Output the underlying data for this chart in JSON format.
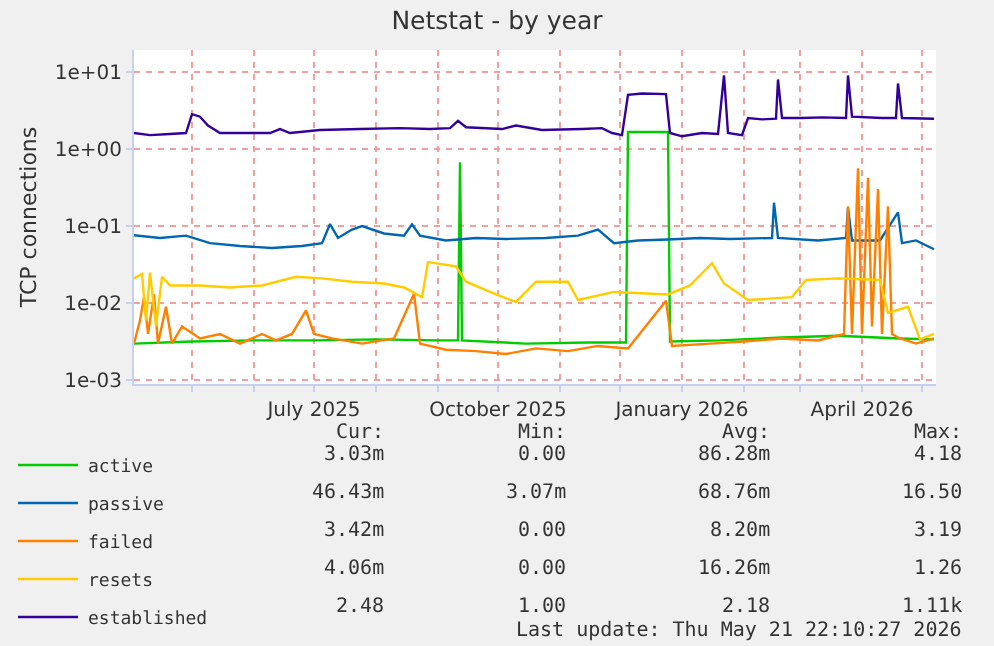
{
  "chart_data": {
    "type": "line",
    "title": "Netstat - by year",
    "ylabel": "TCP connections",
    "log": "y",
    "grid": true,
    "legend": "bottom",
    "xlim": [
      "2025-04-02",
      "2026-05-08"
    ],
    "xticks": [
      {
        "value": "2025-05-01",
        "label": null
      },
      {
        "value": "2025-06-01",
        "label": null
      },
      {
        "value": "2025-07-01",
        "label": "July 2025"
      },
      {
        "value": "2025-08-01",
        "label": null
      },
      {
        "value": "2025-09-01",
        "label": null
      },
      {
        "value": "2025-10-01",
        "label": "October 2025"
      },
      {
        "value": "2025-11-01",
        "label": null
      },
      {
        "value": "2025-12-01",
        "label": null
      },
      {
        "value": "2026-01-01",
        "label": "January 2026"
      },
      {
        "value": "2026-02-01",
        "label": null
      },
      {
        "value": "2026-03-01",
        "label": null
      },
      {
        "value": "2026-04-01",
        "label": "April 2026"
      },
      {
        "value": "2026-05-01",
        "label": null
      }
    ],
    "ylim": [
      0.0009,
      19
    ],
    "yticks": [
      {
        "value": 0.001,
        "label": "1e-03"
      },
      {
        "value": 0.01,
        "label": "1e-02"
      },
      {
        "value": 0.1,
        "label": "1e-01"
      },
      {
        "value": 1,
        "label": "1e+00"
      },
      {
        "value": 10,
        "label": "1e+01"
      }
    ],
    "series": [
      {
        "name": "active",
        "color": "#00cc00",
        "x": [
          "2025-04-02",
          "2025-05-01",
          "2025-06-01",
          "2025-07-01",
          "2025-08-01",
          "2025-09-01",
          "2025-09-11",
          "2025-09-12",
          "2025-09-13",
          "2025-10-15",
          "2025-11-15",
          "2025-12-04",
          "2025-12-05",
          "2025-12-25",
          "2025-12-26",
          "2026-01-20",
          "2026-02-20",
          "2026-03-20",
          "2026-04-20",
          "2026-05-07"
        ],
        "values": [
          0.003,
          0.0032,
          0.0033,
          0.0033,
          0.0034,
          0.0033,
          0.0033,
          0.67,
          0.0033,
          0.003,
          0.0031,
          0.0031,
          1.65,
          1.65,
          0.0032,
          0.0033,
          0.0036,
          0.0038,
          0.0035,
          0.0034
        ]
      },
      {
        "name": "passive",
        "color": "#0066b3",
        "x": [
          "2025-04-02",
          "2025-04-15",
          "2025-04-28",
          "2025-05-10",
          "2025-05-25",
          "2025-06-10",
          "2025-06-25",
          "2025-07-05",
          "2025-07-09",
          "2025-07-13",
          "2025-07-20",
          "2025-07-25",
          "2025-08-05",
          "2025-08-15",
          "2025-08-19",
          "2025-08-23",
          "2025-09-05",
          "2025-09-20",
          "2025-10-05",
          "2025-10-25",
          "2025-11-10",
          "2025-11-20",
          "2025-11-28",
          "2025-12-10",
          "2025-12-25",
          "2026-01-10",
          "2026-01-25",
          "2026-02-15",
          "2026-02-16",
          "2026-02-18",
          "2026-03-10",
          "2026-03-24",
          "2026-03-25",
          "2026-03-27",
          "2026-04-10",
          "2026-04-19",
          "2026-04-21",
          "2026-04-28",
          "2026-05-07"
        ],
        "values": [
          0.076,
          0.07,
          0.075,
          0.06,
          0.055,
          0.052,
          0.055,
          0.06,
          0.106,
          0.07,
          0.09,
          0.1,
          0.08,
          0.075,
          0.105,
          0.075,
          0.065,
          0.07,
          0.068,
          0.07,
          0.075,
          0.09,
          0.06,
          0.065,
          0.067,
          0.07,
          0.068,
          0.07,
          0.2,
          0.07,
          0.065,
          0.07,
          0.17,
          0.065,
          0.065,
          0.15,
          0.06,
          0.065,
          0.05
        ]
      },
      {
        "name": "failed",
        "color": "#ff8000",
        "x": [
          "2025-04-02",
          "2025-04-05",
          "2025-04-07",
          "2025-04-09",
          "2025-04-12",
          "2025-04-14",
          "2025-04-18",
          "2025-04-21",
          "2025-04-26",
          "2025-05-05",
          "2025-05-15",
          "2025-05-25",
          "2025-06-05",
          "2025-06-12",
          "2025-06-20",
          "2025-06-27",
          "2025-07-01",
          "2025-07-10",
          "2025-07-25",
          "2025-08-10",
          "2025-08-20",
          "2025-08-23",
          "2025-09-05",
          "2025-09-20",
          "2025-10-05",
          "2025-10-20",
          "2025-11-05",
          "2025-11-20",
          "2025-12-05",
          "2025-12-24",
          "2025-12-27",
          "2026-01-15",
          "2026-02-01",
          "2026-02-20",
          "2026-03-10",
          "2026-03-23",
          "2026-03-25",
          "2026-03-27",
          "2026-03-30",
          "2026-04-01",
          "2026-04-04",
          "2026-04-06",
          "2026-04-09",
          "2026-04-11",
          "2026-04-14",
          "2026-04-16",
          "2026-04-20",
          "2026-04-28",
          "2026-05-07"
        ],
        "values": [
          0.003,
          0.006,
          0.012,
          0.004,
          0.013,
          0.003,
          0.009,
          0.003,
          0.005,
          0.0035,
          0.004,
          0.003,
          0.004,
          0.0033,
          0.004,
          0.0081,
          0.004,
          0.0035,
          0.003,
          0.0035,
          0.0133,
          0.003,
          0.0025,
          0.0024,
          0.0022,
          0.0026,
          0.0024,
          0.0028,
          0.0026,
          0.0108,
          0.0028,
          0.003,
          0.0032,
          0.0035,
          0.0033,
          0.004,
          0.18,
          0.004,
          0.56,
          0.004,
          0.42,
          0.005,
          0.3,
          0.004,
          0.18,
          0.004,
          0.0035,
          0.003,
          0.0035
        ]
      },
      {
        "name": "resets",
        "color": "#ffcc00",
        "x": [
          "2025-04-02",
          "2025-04-06",
          "2025-04-08",
          "2025-04-10",
          "2025-04-13",
          "2025-04-16",
          "2025-04-20",
          "2025-05-05",
          "2025-05-20",
          "2025-06-05",
          "2025-06-22",
          "2025-07-05",
          "2025-07-20",
          "2025-08-05",
          "2025-08-15",
          "2025-08-24",
          "2025-08-27",
          "2025-09-10",
          "2025-09-15",
          "2025-09-30",
          "2025-10-10",
          "2025-10-20",
          "2025-11-05",
          "2025-11-10",
          "2025-11-28",
          "2025-12-25",
          "2026-01-05",
          "2026-01-16",
          "2026-01-22",
          "2026-02-03",
          "2026-02-25",
          "2026-03-04",
          "2026-03-20",
          "2026-04-10",
          "2026-04-14",
          "2026-04-24",
          "2026-04-30",
          "2026-05-07"
        ],
        "values": [
          0.021,
          0.024,
          0.006,
          0.025,
          0.005,
          0.022,
          0.017,
          0.017,
          0.016,
          0.017,
          0.022,
          0.021,
          0.019,
          0.018,
          0.016,
          0.012,
          0.034,
          0.03,
          0.019,
          0.013,
          0.0104,
          0.019,
          0.019,
          0.011,
          0.014,
          0.013,
          0.017,
          0.033,
          0.018,
          0.011,
          0.012,
          0.02,
          0.021,
          0.02,
          0.0075,
          0.009,
          0.0034,
          0.004
        ]
      },
      {
        "name": "established",
        "color": "#330099",
        "x": [
          "2025-04-02",
          "2025-04-10",
          "2025-04-20",
          "2025-04-28",
          "2025-05-01",
          "2025-05-05",
          "2025-05-09",
          "2025-05-15",
          "2025-05-25",
          "2025-06-09",
          "2025-06-14",
          "2025-06-19",
          "2025-07-04",
          "2025-07-24",
          "2025-08-13",
          "2025-08-28",
          "2025-09-07",
          "2025-09-11",
          "2025-09-15",
          "2025-10-03",
          "2025-10-10",
          "2025-10-23",
          "2025-11-12",
          "2025-11-22",
          "2025-11-27",
          "2025-12-02",
          "2025-12-05",
          "2025-12-12",
          "2025-12-24",
          "2025-12-26",
          "2026-01-01",
          "2026-01-11",
          "2026-01-19",
          "2026-01-22",
          "2026-01-24",
          "2026-01-31",
          "2026-02-03",
          "2026-02-10",
          "2026-02-17",
          "2026-02-18",
          "2026-02-20",
          "2026-03-02",
          "2026-03-12",
          "2026-03-24",
          "2026-03-25",
          "2026-03-27",
          "2026-04-11",
          "2026-04-18",
          "2026-04-19",
          "2026-04-21",
          "2026-05-07"
        ],
        "values": [
          1.6,
          1.5,
          1.55,
          1.6,
          2.8,
          2.6,
          2.0,
          1.6,
          1.6,
          1.6,
          1.8,
          1.6,
          1.75,
          1.8,
          1.85,
          1.8,
          1.85,
          2.3,
          1.9,
          1.8,
          2.0,
          1.75,
          1.8,
          1.85,
          1.6,
          1.5,
          5.0,
          5.2,
          5.1,
          1.6,
          1.45,
          1.6,
          1.55,
          8.9,
          1.6,
          1.5,
          2.5,
          2.4,
          2.45,
          7.9,
          2.5,
          2.5,
          2.55,
          2.5,
          8.9,
          2.6,
          2.5,
          2.5,
          7.0,
          2.5,
          2.45
        ]
      }
    ],
    "annotations": [
      "Cur:",
      "Min:",
      "Avg:",
      "Max:",
      "3.03m",
      "0.00",
      "86.28m",
      "4.18",
      "46.43m",
      "3.07m",
      "68.76m",
      "16.50",
      "3.42m",
      "0.00",
      "8.20m",
      "3.19",
      "4.06m",
      "0.00",
      "16.26m",
      "1.26",
      "2.48",
      "1.00",
      "2.18",
      "1.11k",
      "Last update: Thu May 21 22:10:27 2026"
    ]
  }
}
